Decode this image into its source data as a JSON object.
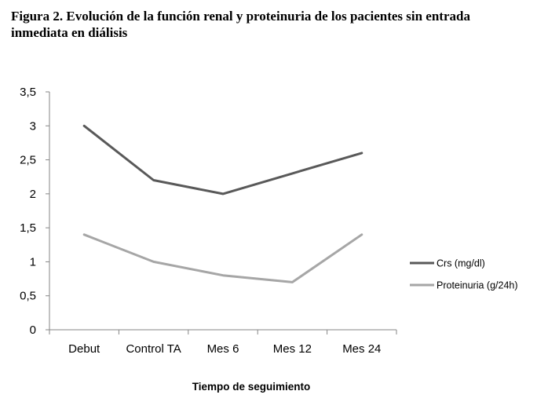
{
  "chart_data": {
    "type": "line",
    "title": "Figura 2. Evolución de la función renal y proteinuria de los pacientes sin entrada inmediata en diálisis",
    "xlabel": "Tiempo de seguimiento",
    "ylabel": "",
    "categories": [
      "Debut",
      "Control TA",
      "Mes 6",
      "Mes 12",
      "Mes 24"
    ],
    "ylim": [
      0,
      3.5
    ],
    "yticks": [
      0,
      0.5,
      1,
      1.5,
      2,
      2.5,
      3,
      3.5
    ],
    "ytick_labels": [
      "0",
      "0,5",
      "1",
      "1,5",
      "2",
      "2,5",
      "3",
      "3,5"
    ],
    "grid": false,
    "legend_position": "right",
    "series": [
      {
        "name": "Crs (mg/dl)",
        "values": [
          3.0,
          2.2,
          2.0,
          2.3,
          2.6
        ],
        "color": "#595959"
      },
      {
        "name": "Proteinuria (g/24h)",
        "values": [
          1.4,
          1.0,
          0.8,
          0.7,
          1.4
        ],
        "color": "#a6a6a6"
      }
    ]
  }
}
